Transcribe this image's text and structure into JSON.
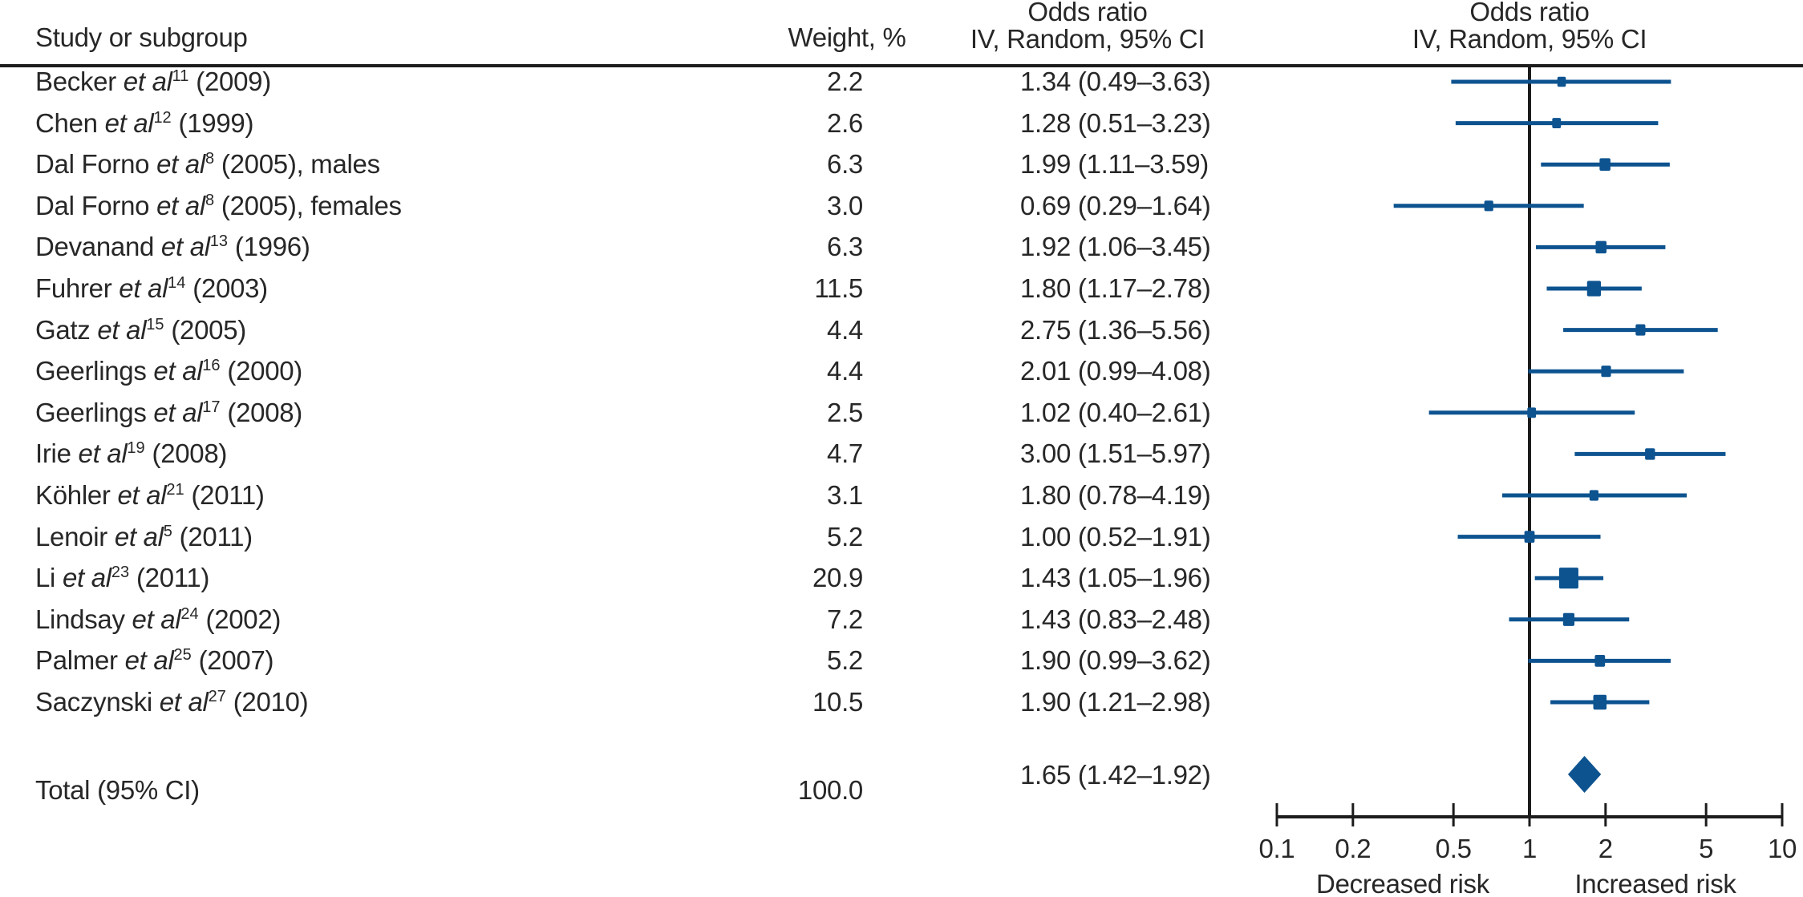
{
  "figure": {
    "background": "#ffffff",
    "columns": {
      "study": "Study or subgroup",
      "weight": "Weight, %",
      "or_line1": "Odds ratio",
      "or_line2": "IV, Random, 95% CI",
      "plot_line1": "Odds ratio",
      "plot_line2": "IV, Random, 95% CI"
    }
  },
  "colors": {
    "accent_blue": "#0d5390",
    "line_black": "#1c1c1c",
    "text": "#272727",
    "background": "#ffffff"
  },
  "chart_data": {
    "type": "scatter",
    "variant": "forest-plot",
    "x_scale": "log",
    "x_range": [
      0.1,
      10
    ],
    "x_ticks": [
      "0.1",
      "0.2",
      "0.5",
      "1",
      "2",
      "5",
      "10"
    ],
    "reference_line": 1.0,
    "effect_measure": "Odds ratio, IV, Random, 95% CI",
    "axis_annotations": {
      "left": "Decreased risk",
      "right": "Increased risk"
    },
    "rows": [
      {
        "study_prefix": "Becker ",
        "etal": "et al",
        "ref": "11",
        "study_suffix": " (2009)",
        "weight": "2.2",
        "weight_value": 2.2,
        "or_text": "1.34 (0.49–3.63)",
        "or": 1.34,
        "ci_low": 0.49,
        "ci_high": 3.63
      },
      {
        "study_prefix": "Chen ",
        "etal": "et al",
        "ref": "12",
        "study_suffix": " (1999)",
        "weight": "2.6",
        "weight_value": 2.6,
        "or_text": "1.28 (0.51–3.23)",
        "or": 1.28,
        "ci_low": 0.51,
        "ci_high": 3.23
      },
      {
        "study_prefix": "Dal Forno ",
        "etal": "et al",
        "ref": "8",
        "study_suffix": " (2005), males",
        "weight": "6.3",
        "weight_value": 6.3,
        "or_text": "1.99 (1.11–3.59)",
        "or": 1.99,
        "ci_low": 1.11,
        "ci_high": 3.59
      },
      {
        "study_prefix": "Dal Forno ",
        "etal": "et al",
        "ref": "8",
        "study_suffix": " (2005), females",
        "weight": "3.0",
        "weight_value": 3.0,
        "or_text": "0.69 (0.29–1.64)",
        "or": 0.69,
        "ci_low": 0.29,
        "ci_high": 1.64
      },
      {
        "study_prefix": "Devanand ",
        "etal": "et al",
        "ref": "13",
        "study_suffix": " (1996)",
        "weight": "6.3",
        "weight_value": 6.3,
        "or_text": "1.92 (1.06–3.45)",
        "or": 1.92,
        "ci_low": 1.06,
        "ci_high": 3.45
      },
      {
        "study_prefix": "Fuhrer ",
        "etal": "et al",
        "ref": "14",
        "study_suffix": " (2003)",
        "weight": "11.5",
        "weight_value": 11.5,
        "or_text": "1.80 (1.17–2.78)",
        "or": 1.8,
        "ci_low": 1.17,
        "ci_high": 2.78
      },
      {
        "study_prefix": "Gatz ",
        "etal": "et al",
        "ref": "15",
        "study_suffix": " (2005)",
        "weight": "4.4",
        "weight_value": 4.4,
        "or_text": "2.75 (1.36–5.56)",
        "or": 2.75,
        "ci_low": 1.36,
        "ci_high": 5.56
      },
      {
        "study_prefix": "Geerlings ",
        "etal": "et al",
        "ref": "16",
        "study_suffix": " (2000)",
        "weight": "4.4",
        "weight_value": 4.4,
        "or_text": "2.01 (0.99–4.08)",
        "or": 2.01,
        "ci_low": 0.99,
        "ci_high": 4.08
      },
      {
        "study_prefix": "Geerlings ",
        "etal": "et al",
        "ref": "17",
        "study_suffix": " (2008)",
        "weight": "2.5",
        "weight_value": 2.5,
        "or_text": "1.02 (0.40–2.61)",
        "or": 1.02,
        "ci_low": 0.4,
        "ci_high": 2.61
      },
      {
        "study_prefix": "Irie ",
        "etal": "et al",
        "ref": "19",
        "study_suffix": " (2008)",
        "weight": "4.7",
        "weight_value": 4.7,
        "or_text": "3.00 (1.51–5.97)",
        "or": 3.0,
        "ci_low": 1.51,
        "ci_high": 5.97
      },
      {
        "study_prefix": "Köhler ",
        "etal": "et al",
        "ref": "21",
        "study_suffix": " (2011)",
        "weight": "3.1",
        "weight_value": 3.1,
        "or_text": "1.80 (0.78–4.19)",
        "or": 1.8,
        "ci_low": 0.78,
        "ci_high": 4.19
      },
      {
        "study_prefix": "Lenoir ",
        "etal": "et al",
        "ref": "5",
        "study_suffix": " (2011)",
        "weight": "5.2",
        "weight_value": 5.2,
        "or_text": "1.00 (0.52–1.91)",
        "or": 1.0,
        "ci_low": 0.52,
        "ci_high": 1.91
      },
      {
        "study_prefix": "Li ",
        "etal": "et al",
        "ref": "23",
        "study_suffix": " (2011)",
        "weight": "20.9",
        "weight_value": 20.9,
        "or_text": "1.43 (1.05–1.96)",
        "or": 1.43,
        "ci_low": 1.05,
        "ci_high": 1.96
      },
      {
        "study_prefix": "Lindsay ",
        "etal": "et al",
        "ref": "24",
        "study_suffix": " (2002)",
        "weight": "7.2",
        "weight_value": 7.2,
        "or_text": "1.43 (0.83–2.48)",
        "or": 1.43,
        "ci_low": 0.83,
        "ci_high": 2.48
      },
      {
        "study_prefix": "Palmer ",
        "etal": "et al",
        "ref": "25",
        "study_suffix": " (2007)",
        "weight": "5.2",
        "weight_value": 5.2,
        "or_text": "1.90 (0.99–3.62)",
        "or": 1.9,
        "ci_low": 0.99,
        "ci_high": 3.62
      },
      {
        "study_prefix": "Saczynski ",
        "etal": "et al",
        "ref": "27",
        "study_suffix": " (2010)",
        "weight": "10.5",
        "weight_value": 10.5,
        "or_text": "1.90 (1.21–2.98)",
        "or": 1.9,
        "ci_low": 1.21,
        "ci_high": 2.98
      }
    ],
    "total": {
      "label": "Total (95% CI)",
      "weight": "100.0",
      "weight_value": 100.0,
      "or_text": "1.65 (1.42–1.92)",
      "or": 1.65,
      "ci_low": 1.42,
      "ci_high": 1.92
    }
  }
}
